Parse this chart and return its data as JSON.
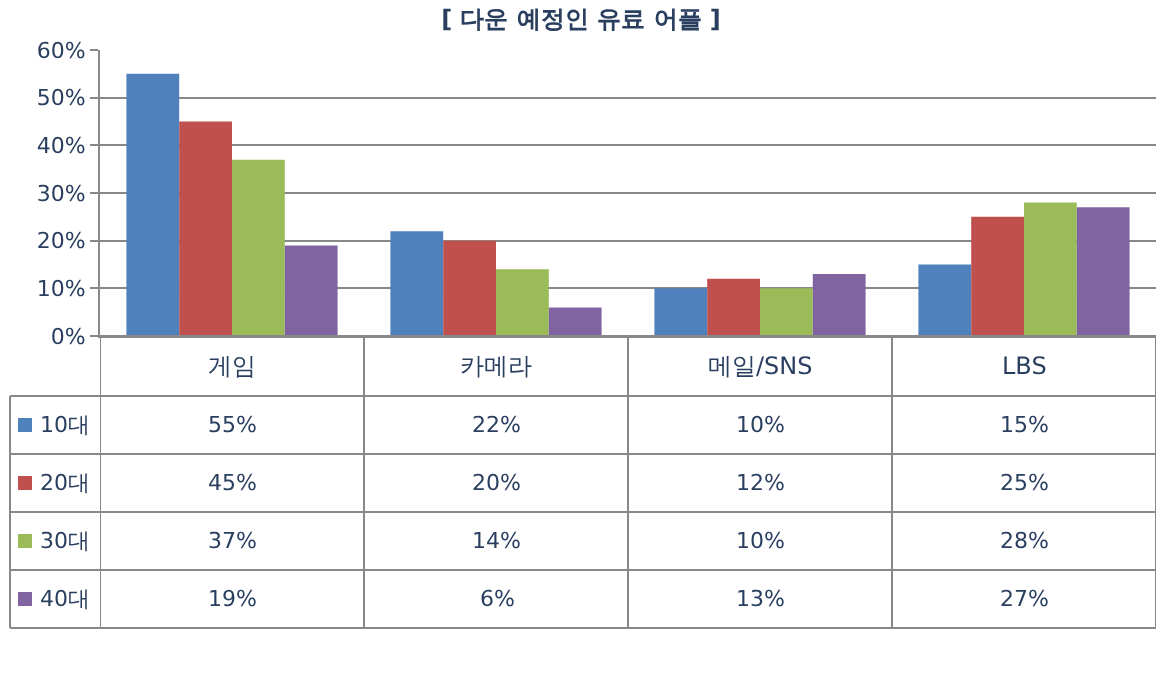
{
  "chart_data": {
    "type": "bar",
    "title": "[ 다운 예정인 유료 어플 ]",
    "categories": [
      "게임",
      "카메라",
      "메일/SNS",
      "LBS"
    ],
    "series": [
      {
        "name": "10대",
        "color": "#4f81bd",
        "values": [
          55,
          22,
          10,
          15
        ],
        "value_labels": [
          "55%",
          "22%",
          "10%",
          "15%"
        ]
      },
      {
        "name": "20대",
        "color": "#c0504d",
        "values": [
          45,
          20,
          12,
          25
        ],
        "value_labels": [
          "45%",
          "20%",
          "12%",
          "25%"
        ]
      },
      {
        "name": "30대",
        "color": "#9bbb59",
        "values": [
          37,
          14,
          10,
          28
        ],
        "value_labels": [
          "37%",
          "14%",
          "10%",
          "28%"
        ]
      },
      {
        "name": "40대",
        "color": "#8064a2",
        "values": [
          19,
          6,
          13,
          27
        ],
        "value_labels": [
          "19%",
          "6%",
          "13%",
          "27%"
        ]
      }
    ],
    "ylim": [
      0,
      60
    ],
    "yticks": [
      {
        "value": 0,
        "label": "0%"
      },
      {
        "value": 10,
        "label": "10%"
      },
      {
        "value": 20,
        "label": "20%"
      },
      {
        "value": 30,
        "label": "30%"
      },
      {
        "value": 40,
        "label": "40%"
      },
      {
        "value": 50,
        "label": "50%"
      },
      {
        "value": 60,
        "label": "60%"
      }
    ],
    "grid": "y",
    "legend": "bottom left"
  }
}
